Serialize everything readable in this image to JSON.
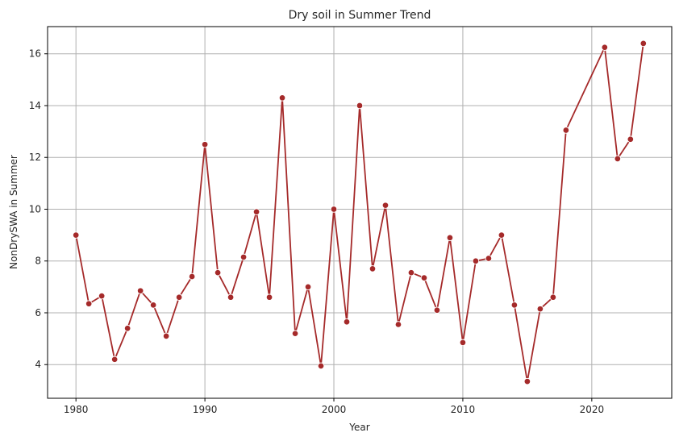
{
  "chart_data": {
    "type": "line",
    "title": "Dry soil in Summer Trend",
    "xlabel": "Year",
    "ylabel": "NonDrySWA in Summer",
    "xlim": [
      1977.8,
      2026.2
    ],
    "ylim": [
      2.7,
      17.05
    ],
    "xticks": [
      1980,
      1990,
      2000,
      2010,
      2020
    ],
    "yticks": [
      4,
      6,
      8,
      10,
      12,
      14,
      16
    ],
    "grid": true,
    "color": "#a52a2a",
    "x": [
      1980,
      1981,
      1982,
      1983,
      1984,
      1985,
      1986,
      1987,
      1988,
      1989,
      1990,
      1991,
      1992,
      1993,
      1994,
      1995,
      1996,
      1997,
      1998,
      1999,
      2000,
      2001,
      2002,
      2003,
      2004,
      2005,
      2006,
      2007,
      2008,
      2009,
      2010,
      2011,
      2012,
      2013,
      2014,
      2015,
      2016,
      2017,
      2018,
      2021,
      2022,
      2023,
      2024
    ],
    "y": [
      9.0,
      6.35,
      6.65,
      4.2,
      5.4,
      6.85,
      6.3,
      5.1,
      6.6,
      7.4,
      12.5,
      7.55,
      6.6,
      8.15,
      9.9,
      6.6,
      14.3,
      5.2,
      7.0,
      3.95,
      10.0,
      5.65,
      14.0,
      7.7,
      10.15,
      5.55,
      7.55,
      7.35,
      6.1,
      8.9,
      4.85,
      8.0,
      8.1,
      9.0,
      6.3,
      3.35,
      6.15,
      6.6,
      13.05,
      16.25,
      11.95,
      12.7,
      16.4
    ]
  }
}
